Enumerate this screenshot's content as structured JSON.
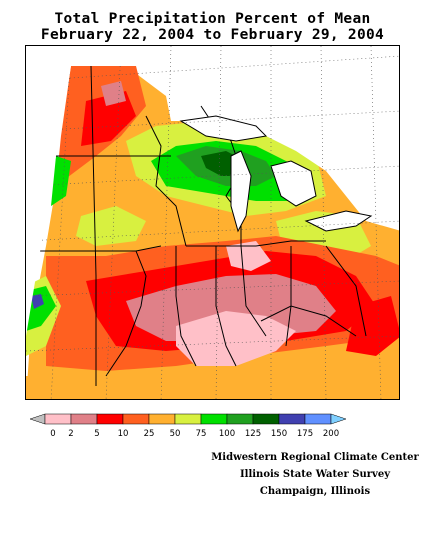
{
  "title": {
    "line1": "Total Precipitation Percent of Mean",
    "line2": "February 22, 2004 to February 29, 2004"
  },
  "legend": {
    "labels": [
      "0",
      "2",
      "5",
      "10",
      "25",
      "50",
      "75",
      "100",
      "125",
      "150",
      "175",
      "200"
    ],
    "colors": [
      "#c0c0c0",
      "#ffc0c8",
      "#e08088",
      "#ff0000",
      "#ff6020",
      "#ffb030",
      "#d8f040",
      "#00e000",
      "#20a020",
      "#006000",
      "#4040b0",
      "#6090ff",
      "#80d0ff"
    ]
  },
  "credits": {
    "line1": "Midwestern Regional Climate Center",
    "line2": "Illinois State Water Survey",
    "line3": "Champaign, Illinois"
  },
  "map": {
    "fill_colors": {
      "pink": "#ffc0c8",
      "rose": "#e08088",
      "red": "#ff0000",
      "redorange": "#ff6020",
      "orange": "#ffb030",
      "yellowgreen": "#d8f040",
      "green": "#00e000",
      "mediumgreen": "#20a020",
      "darkgreen": "#006000",
      "blue": "#4040b0",
      "lightblue": "#6090ff"
    }
  }
}
